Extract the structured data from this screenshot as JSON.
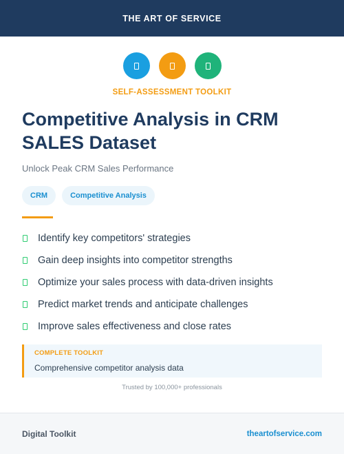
{
  "header": {
    "title": "THE ART OF SERVICE"
  },
  "icons": [
    {
      "name": "document-icon",
      "color": "#1a9fe0"
    },
    {
      "name": "document-icon",
      "color": "#f39c12"
    },
    {
      "name": "document-icon",
      "color": "#1fb37a"
    }
  ],
  "kicker": "SELF-ASSESSMENT TOOLKIT",
  "title": "Competitive Analysis in CRM SALES Dataset",
  "subtitle": "Unlock Peak CRM Sales Performance",
  "tags": [
    "CRM",
    "Competitive Analysis"
  ],
  "benefits": [
    "Identify key competitors' strategies",
    "Gain deep insights into competitor strengths",
    "Optimize your sales process with data-driven insights",
    "Predict market trends and anticipate challenges",
    "Improve sales effectiveness and close rates"
  ],
  "callout": {
    "label": "COMPLETE TOOLKIT",
    "text": "Comprehensive competitor analysis data"
  },
  "trusted": "Trusted by 100,000+ professionals",
  "footer": {
    "left": "Digital Toolkit",
    "right": "theartofservice.com"
  }
}
